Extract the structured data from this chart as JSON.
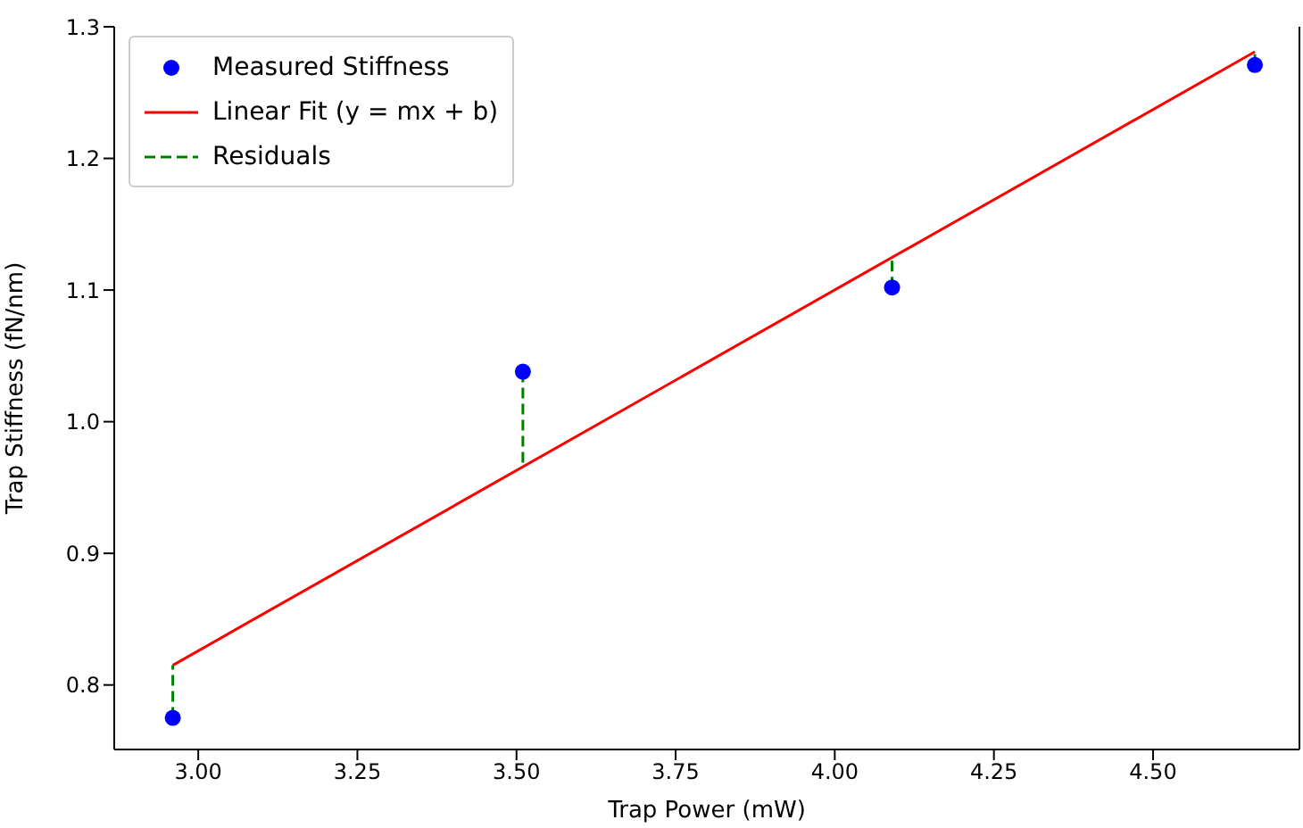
{
  "chart_data": {
    "type": "scatter",
    "xlabel": "Trap Power (mW)",
    "ylabel": "Trap Stiffness (fN/nm)",
    "xlim": [
      2.868,
      4.73
    ],
    "ylim": [
      0.751,
      1.3
    ],
    "xticks": [
      {
        "value": 3.0,
        "label": "3.00"
      },
      {
        "value": 3.25,
        "label": "3.25"
      },
      {
        "value": 3.5,
        "label": "3.50"
      },
      {
        "value": 3.75,
        "label": "3.75"
      },
      {
        "value": 4.0,
        "label": "4.00"
      },
      {
        "value": 4.25,
        "label": "4.25"
      },
      {
        "value": 4.5,
        "label": "4.50"
      }
    ],
    "yticks": [
      {
        "value": 0.8,
        "label": "0.8"
      },
      {
        "value": 0.9,
        "label": "0.9"
      },
      {
        "value": 1.0,
        "label": "1.0"
      },
      {
        "value": 1.1,
        "label": "1.1"
      },
      {
        "value": 1.2,
        "label": "1.2"
      },
      {
        "value": 1.3,
        "label": "1.3"
      }
    ],
    "series": [
      {
        "name": "Measured Stiffness",
        "color": "#0000ff",
        "marker": "circle",
        "x": [
          2.96,
          3.51,
          4.09,
          4.66
        ],
        "values": [
          0.775,
          1.038,
          1.102,
          1.271
        ]
      },
      {
        "name": "Linear Fit (y = mx + b)",
        "type": "line",
        "color": "#ff0000",
        "line_style": "solid",
        "x": [
          2.96,
          4.66
        ],
        "values": [
          0.815,
          1.281
        ]
      },
      {
        "name": "Residuals",
        "type": "line",
        "color": "#008000",
        "line_style": "dashed",
        "x": [
          2.96,
          2.96
        ],
        "values": [
          0.775,
          0.815
        ]
      },
      {
        "type": "line",
        "color": "#008000",
        "line_style": "dashed",
        "x": [
          3.51,
          3.51
        ],
        "values": [
          1.038,
          0.966
        ]
      },
      {
        "type": "line",
        "color": "#008000",
        "line_style": "dashed",
        "x": [
          4.09,
          4.09
        ],
        "values": [
          1.102,
          1.125
        ]
      },
      {
        "type": "line",
        "color": "#008000",
        "line_style": "dashed",
        "x": [
          4.66,
          4.66
        ],
        "values": [
          1.271,
          1.281
        ]
      }
    ],
    "legend": "top left",
    "grid": false
  }
}
